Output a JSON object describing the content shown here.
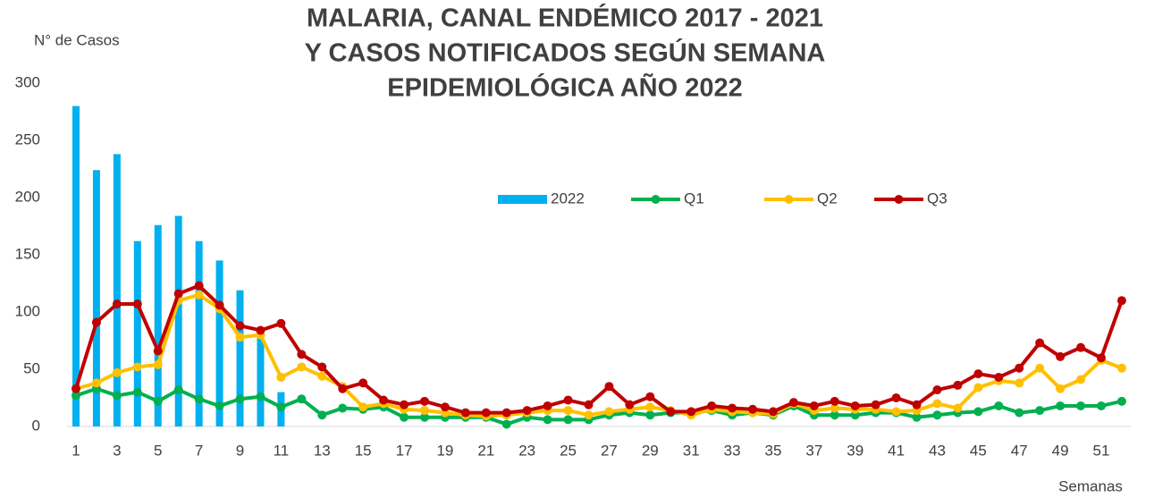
{
  "chart_data": {
    "type": "bar-line",
    "title": [
      "MALARIA,  CANAL ENDÉMICO 2017 - 2021",
      "Y CASOS NOTIFICADOS SEGÚN SEMANA",
      "EPIDEMIOLÓGICA AÑO 2022"
    ],
    "y_label": "N° de Casos",
    "x_label": "Semanas",
    "categories": [
      1,
      null,
      3,
      null,
      5,
      null,
      7,
      null,
      9,
      null,
      11,
      null,
      13,
      null,
      15,
      null,
      17,
      null,
      19,
      null,
      21,
      null,
      23,
      null,
      25,
      null,
      27,
      null,
      29,
      null,
      31,
      null,
      33,
      null,
      35,
      null,
      37,
      null,
      39,
      null,
      41,
      null,
      43,
      null,
      45,
      null,
      47,
      null,
      49,
      null,
      51,
      null
    ],
    "series": [
      {
        "name": "2022",
        "type": "bar",
        "color": "#00b0f0",
        "values": [
          280,
          224,
          238,
          162,
          176,
          184,
          162,
          145,
          119,
          83,
          30,
          null,
          null,
          null,
          null,
          null,
          null,
          null,
          null,
          null,
          null,
          null,
          null,
          null,
          null,
          null,
          null,
          null,
          null,
          null,
          null,
          null,
          null,
          null,
          null,
          null,
          null,
          null,
          null,
          null,
          null,
          null,
          null,
          null,
          null,
          null,
          null,
          null,
          null,
          null,
          null,
          null
        ]
      },
      {
        "name": "Q1",
        "type": "line",
        "color": "#00b050",
        "values": [
          27,
          33,
          27,
          30,
          22,
          32,
          24,
          18,
          24,
          26,
          17,
          24,
          10,
          16,
          15,
          17,
          8,
          8,
          8,
          8,
          8,
          2,
          8,
          6,
          6,
          6,
          10,
          12,
          10,
          12,
          12,
          14,
          10,
          12,
          10,
          18,
          10,
          10,
          10,
          12,
          12,
          8,
          10,
          12,
          13,
          18,
          12,
          14,
          18,
          18,
          18,
          22
        ]
      },
      {
        "name": "Q2",
        "type": "line",
        "color": "#ffc000",
        "values": [
          33,
          38,
          47,
          52,
          54,
          110,
          115,
          103,
          78,
          80,
          43,
          52,
          44,
          35,
          17,
          20,
          15,
          14,
          12,
          10,
          9,
          10,
          12,
          14,
          14,
          10,
          13,
          15,
          17,
          14,
          10,
          15,
          13,
          12,
          11,
          20,
          14,
          16,
          15,
          15,
          13,
          14,
          20,
          16,
          34,
          40,
          38,
          51,
          33,
          41,
          58,
          51
        ]
      },
      {
        "name": "Q3",
        "type": "line",
        "color": "#c00000",
        "values": [
          33,
          91,
          107,
          107,
          66,
          116,
          123,
          106,
          88,
          84,
          90,
          63,
          52,
          33,
          38,
          23,
          19,
          22,
          17,
          12,
          12,
          12,
          14,
          18,
          23,
          19,
          35,
          19,
          26,
          13,
          13,
          18,
          16,
          15,
          13,
          21,
          18,
          22,
          18,
          19,
          25,
          19,
          32,
          36,
          46,
          43,
          51,
          73,
          61,
          69,
          60,
          110
        ]
      }
    ],
    "ylim": [
      0,
      300
    ],
    "yticks": [
      0,
      50,
      100,
      150,
      200,
      250,
      300
    ],
    "grid": false,
    "legend": "center"
  }
}
